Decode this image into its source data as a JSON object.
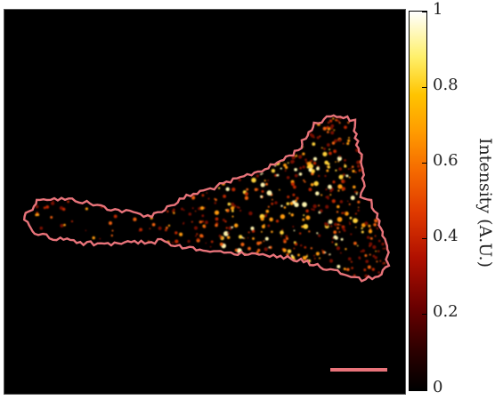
{
  "colorbar": {
    "label": "Intensity (A.U.)",
    "ticks": [
      "0",
      "0.2",
      "0.4",
      "0.6",
      "0.8",
      "1"
    ]
  },
  "colors": {
    "outline": "#e8737a",
    "scale_bar": "#e8737a",
    "background": "#000000"
  }
}
